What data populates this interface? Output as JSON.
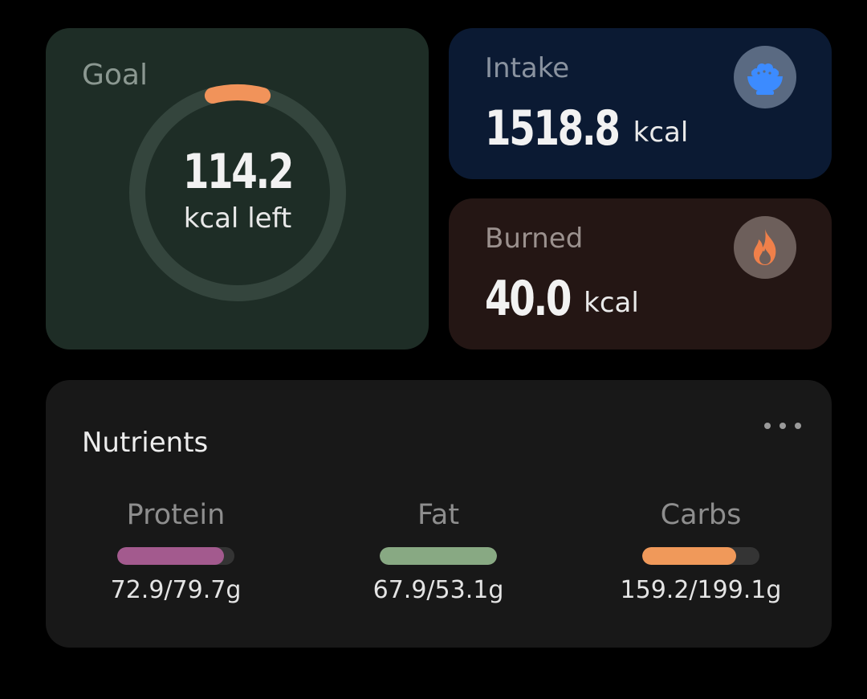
{
  "goal": {
    "title": "Goal",
    "value": "114.2",
    "unit": "kcal left",
    "progress_fraction": 0.08,
    "ring_color": "#f1935a",
    "track_color": "#34453d"
  },
  "intake": {
    "title": "Intake",
    "value": "1518.8",
    "unit": "kcal",
    "icon": "rice-bowl-icon",
    "icon_color": "#3c8bff"
  },
  "burned": {
    "title": "Burned",
    "value": "40.0",
    "unit": "kcal",
    "icon": "flame-icon",
    "icon_color": "#f0804a"
  },
  "nutrients": {
    "title": "Nutrients",
    "menu_icon": "more-dots-icon",
    "items": [
      {
        "label": "Protein",
        "amount": "72.9/79.7g",
        "fill_fraction": 0.91,
        "color": "#a35a8e"
      },
      {
        "label": "Fat",
        "amount": "67.9/53.1g",
        "fill_fraction": 1.0,
        "color": "#88a983"
      },
      {
        "label": "Carbs",
        "amount": "159.2/199.1g",
        "fill_fraction": 0.8,
        "color": "#f0995a"
      }
    ]
  }
}
